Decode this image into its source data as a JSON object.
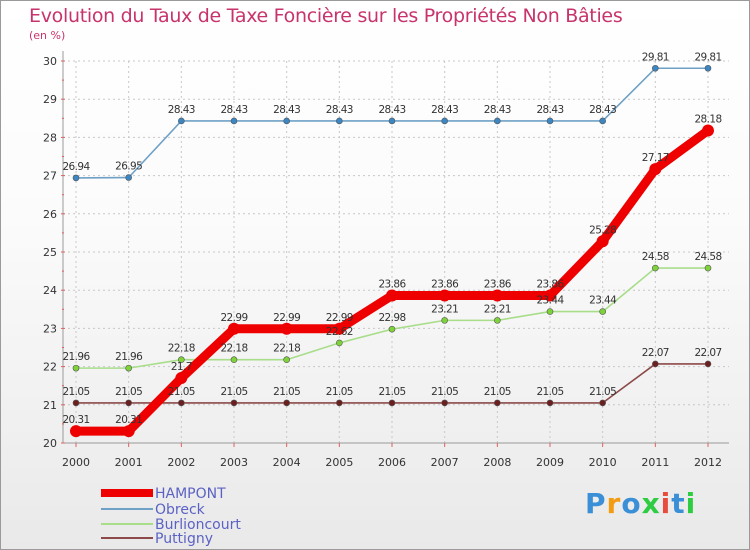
{
  "title": "Evolution du Taux de Taxe Foncière sur les Propriétés Non Bâties",
  "subtitle": "(en %)",
  "logo": {
    "text": "Proxiti",
    "colors": [
      "#3a8fd6",
      "#f39c12",
      "#3a8fd6",
      "#2ecc40",
      "#e74c3c",
      "#3a8fd6",
      "#2ecc40"
    ]
  },
  "chart_data": {
    "type": "line",
    "title": "Evolution du Taux de Taxe Foncière sur les Propriétés Non Bâties",
    "ylabel": "(en %)",
    "xlabel": "",
    "ylim": [
      20,
      30
    ],
    "yticks": [
      "20",
      "21",
      "22",
      "23",
      "24",
      "25",
      "26",
      "27",
      "28",
      "29",
      "30"
    ],
    "x": [
      "2000",
      "2001",
      "2002",
      "2003",
      "2004",
      "2005",
      "2006",
      "2007",
      "2008",
      "2009",
      "2010",
      "2011",
      "2012"
    ],
    "legend_position": "bottom-left",
    "series": [
      {
        "name": "HAMPONT",
        "color": "#ee0000",
        "values": [
          20.31,
          20.31,
          21.7,
          22.99,
          22.99,
          22.99,
          23.86,
          23.86,
          23.86,
          23.86,
          25.28,
          27.17,
          28.18
        ],
        "labels": [
          "20.31",
          "20.31",
          "21.7",
          "22.99",
          "22.99",
          "22.99",
          "23.86",
          "23.86",
          "23.86",
          "23.86",
          "25.28",
          "27.17",
          "28.18"
        ]
      },
      {
        "name": "Obreck",
        "color": "#6fa1c7",
        "values": [
          26.94,
          26.95,
          28.43,
          28.43,
          28.43,
          28.43,
          28.43,
          28.43,
          28.43,
          28.43,
          28.43,
          29.81,
          29.81
        ],
        "labels": [
          "26.94",
          "26.95",
          "28.43",
          "28.43",
          "28.43",
          "28.43",
          "28.43",
          "28.43",
          "28.43",
          "28.43",
          "28.43",
          "29.81",
          "29.81"
        ]
      },
      {
        "name": "Burlioncourt",
        "color": "#a8dd8a",
        "values": [
          21.96,
          21.96,
          22.18,
          22.18,
          22.18,
          22.62,
          22.98,
          23.21,
          23.21,
          23.44,
          23.44,
          24.58,
          24.58
        ],
        "labels": [
          "21.96",
          "21.96",
          "22.18",
          "22.18",
          "22.18",
          "22.62",
          "22.98",
          "23.21",
          "23.21",
          "23.44",
          "23.44",
          "24.58",
          "24.58"
        ]
      },
      {
        "name": "Puttigny",
        "color": "#8c4a4a",
        "values": [
          21.05,
          21.05,
          21.05,
          21.05,
          21.05,
          21.05,
          21.05,
          21.05,
          21.05,
          21.05,
          21.05,
          22.07,
          22.07
        ],
        "labels": [
          "21.05",
          "21.05",
          "21.05",
          "21.05",
          "21.05",
          "21.05",
          "21.05",
          "21.05",
          "21.05",
          "21.05",
          "21.05",
          "22.07",
          "22.07"
        ]
      }
    ]
  }
}
